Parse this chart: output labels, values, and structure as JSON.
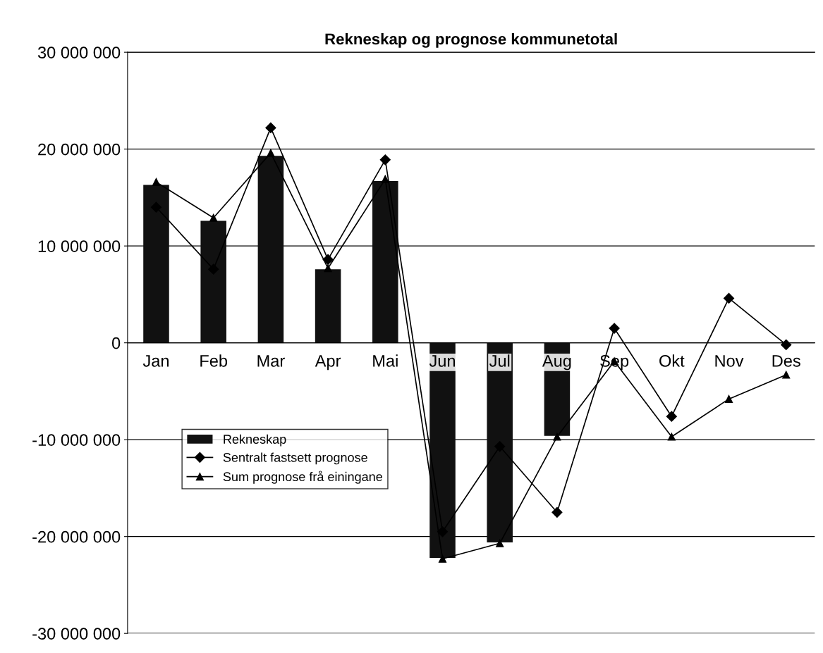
{
  "chart_data": {
    "type": "bar",
    "title": "Rekneskap og prognose kommunetotal",
    "categories": [
      "Jan",
      "Feb",
      "Mar",
      "Apr",
      "Mai",
      "Jun",
      "Jul",
      "Aug",
      "Sep",
      "Okt",
      "Nov",
      "Des"
    ],
    "series": [
      {
        "name": "Rekneskap",
        "type": "bar",
        "color": "#111111",
        "values": [
          16300000,
          12600000,
          19300000,
          7600000,
          16700000,
          -22200000,
          -20600000,
          -9600000,
          null,
          null,
          null,
          null
        ]
      },
      {
        "name": "Sentralt fastsett prognose",
        "type": "line",
        "color": "#000000",
        "marker": "diamond",
        "values": [
          14000000,
          7600000,
          22200000,
          8600000,
          18900000,
          -19500000,
          -10700000,
          -17500000,
          1500000,
          -7600000,
          4600000,
          -200000
        ]
      },
      {
        "name": "Sum prognose frå einingane",
        "type": "line",
        "color": "#000000",
        "marker": "triangle",
        "values": [
          16600000,
          12900000,
          19600000,
          7700000,
          16900000,
          -22300000,
          -20700000,
          -9700000,
          -1900000,
          -9700000,
          -5800000,
          -3300000
        ]
      }
    ],
    "ylim": [
      -30000000,
      30000000
    ],
    "yticks": [
      {
        "value": -30000000,
        "label": "-30 000 000"
      },
      {
        "value": -20000000,
        "label": "-20 000 000"
      },
      {
        "value": -10000000,
        "label": "-10 000 000"
      },
      {
        "value": 0,
        "label": "0"
      },
      {
        "value": 10000000,
        "label": "10 000 000"
      },
      {
        "value": 20000000,
        "label": "20 000 000"
      },
      {
        "value": 30000000,
        "label": "30 000 000"
      }
    ],
    "grid": "y",
    "legend": "left"
  }
}
